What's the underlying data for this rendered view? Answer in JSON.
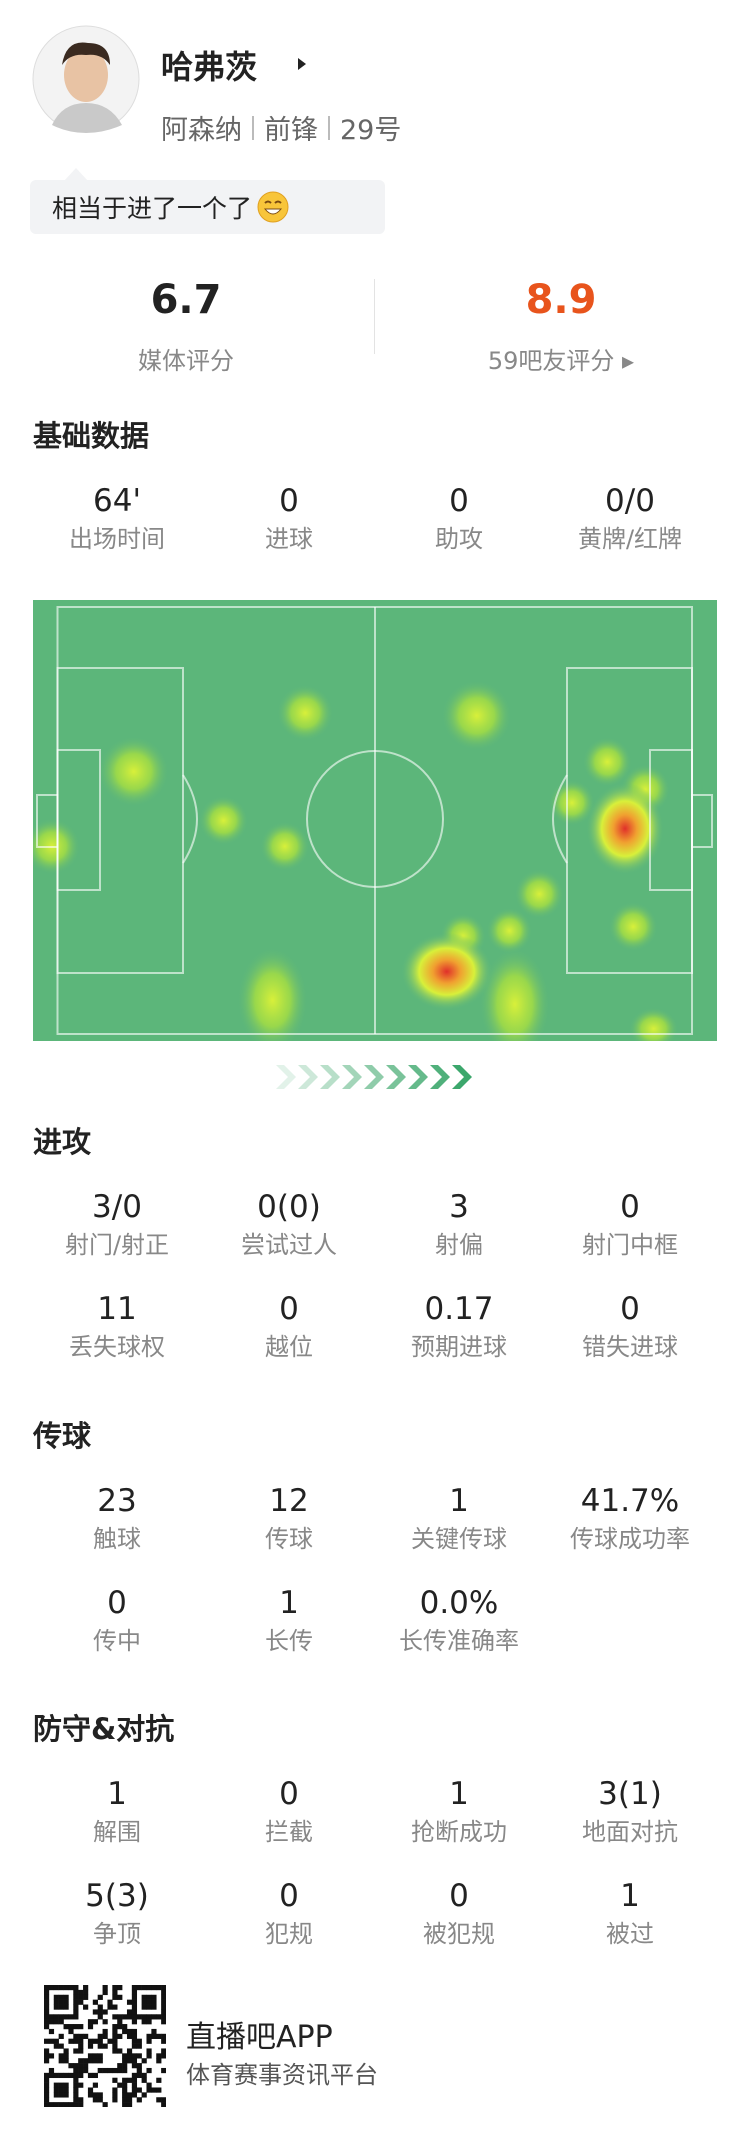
{
  "player": {
    "name": "哈弗茨",
    "team": "阿森纳",
    "position": "前锋",
    "number": "29号"
  },
  "comment": "相当于进了一个了",
  "ratings": {
    "media": {
      "value": "6.7",
      "label": "媒体评分"
    },
    "fans": {
      "value": "8.9",
      "label": "59吧友评分"
    }
  },
  "sections": [
    {
      "title": "基础数据",
      "stats": [
        {
          "value": "64'",
          "label": "出场时间"
        },
        {
          "value": "0",
          "label": "进球"
        },
        {
          "value": "0",
          "label": "助攻"
        },
        {
          "value": "0/0",
          "label": "黄牌/红牌"
        }
      ]
    },
    {
      "title": "进攻",
      "stats": [
        {
          "value": "3/0",
          "label": "射门/射正"
        },
        {
          "value": "0(0)",
          "label": "尝试过人"
        },
        {
          "value": "3",
          "label": "射偏"
        },
        {
          "value": "0",
          "label": "射门中框"
        },
        {
          "value": "11",
          "label": "丢失球权"
        },
        {
          "value": "0",
          "label": "越位"
        },
        {
          "value": "0.17",
          "label": "预期进球"
        },
        {
          "value": "0",
          "label": "错失进球"
        }
      ]
    },
    {
      "title": "传球",
      "stats": [
        {
          "value": "23",
          "label": "触球"
        },
        {
          "value": "12",
          "label": "传球"
        },
        {
          "value": "1",
          "label": "关键传球"
        },
        {
          "value": "41.7%",
          "label": "传球成功率"
        },
        {
          "value": "0",
          "label": "传中"
        },
        {
          "value": "1",
          "label": "长传"
        },
        {
          "value": "0.0%",
          "label": "长传准确率"
        }
      ]
    },
    {
      "title": "防守&对抗",
      "stats": [
        {
          "value": "1",
          "label": "解围"
        },
        {
          "value": "0",
          "label": "拦截"
        },
        {
          "value": "1",
          "label": "抢断成功"
        },
        {
          "value": "3(1)",
          "label": "地面对抗"
        },
        {
          "value": "5(3)",
          "label": "争顶"
        },
        {
          "value": "0",
          "label": "犯规"
        },
        {
          "value": "0",
          "label": "被犯规"
        },
        {
          "value": "1",
          "label": "被过"
        }
      ]
    }
  ],
  "footer": {
    "app": "直播吧APP",
    "slogan": "体育赛事资讯平台"
  }
}
